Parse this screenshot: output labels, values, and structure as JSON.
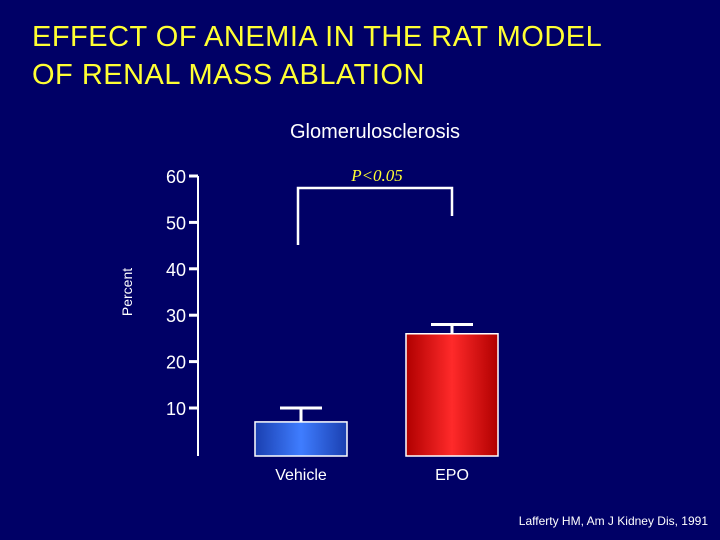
{
  "slide": {
    "title_line1": "EFFECT OF ANEMIA IN THE RAT MODEL",
    "title_line2": "OF RENAL MASS ABLATION",
    "citation": "Lafferty HM, Am J Kidney Dis, 1991"
  },
  "chart_data": {
    "type": "bar",
    "title": "Glomerulosclerosis",
    "ylabel": "Percent",
    "xlabel": "",
    "categories": [
      "Vehicle",
      "EPO"
    ],
    "values": [
      7,
      26
    ],
    "error_upper": [
      10,
      28
    ],
    "yticks": [
      10,
      20,
      30,
      40,
      50,
      60
    ],
    "ylim": [
      0,
      60
    ],
    "significance": {
      "label": "P<0.05",
      "between": [
        "Vehicle",
        "EPO"
      ]
    },
    "grid": false,
    "legend": "none"
  },
  "colors": {
    "background": "#000066",
    "title": "#ffff33",
    "vehicle_bar": "#2255dd",
    "epo_bar": "#dd1111",
    "axis": "#ffffff"
  }
}
